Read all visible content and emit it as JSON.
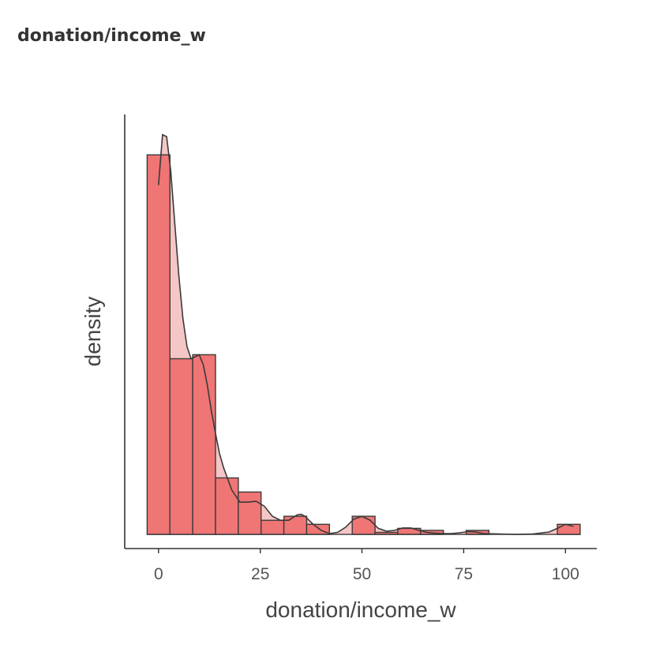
{
  "header": {
    "title": "donation/income_w"
  },
  "chart_data": {
    "type": "bar",
    "subtype": "histogram-with-density",
    "xlabel": "donation/income_w",
    "ylabel": "density",
    "xlim": [
      -8.3,
      107.7
    ],
    "ylim": [
      -0.0035,
      0.104
    ],
    "x_ticks": [
      0,
      25,
      50,
      75,
      100
    ],
    "x_tick_labels": [
      "0",
      "25",
      "50",
      "75",
      "100"
    ],
    "y_ticks_shown": false,
    "grid": false,
    "legend": "none",
    "bin_width": 5.6,
    "bins": [
      {
        "x0": -2.8,
        "x1": 2.8,
        "density": 0.094
      },
      {
        "x0": 2.8,
        "x1": 8.4,
        "density": 0.0435
      },
      {
        "x0": 8.4,
        "x1": 14.0,
        "density": 0.0445
      },
      {
        "x0": 14.0,
        "x1": 19.6,
        "density": 0.014
      },
      {
        "x0": 19.6,
        "x1": 25.2,
        "density": 0.0105
      },
      {
        "x0": 25.2,
        "x1": 30.8,
        "density": 0.0035
      },
      {
        "x0": 30.8,
        "x1": 36.4,
        "density": 0.0045
      },
      {
        "x0": 36.4,
        "x1": 42.0,
        "density": 0.0025
      },
      {
        "x0": 42.0,
        "x1": 47.6,
        "density": 0.0
      },
      {
        "x0": 47.6,
        "x1": 53.2,
        "density": 0.0045
      },
      {
        "x0": 53.2,
        "x1": 58.8,
        "density": 0.0005
      },
      {
        "x0": 58.8,
        "x1": 64.4,
        "density": 0.0015
      },
      {
        "x0": 64.4,
        "x1": 70.0,
        "density": 0.001
      },
      {
        "x0": 70.0,
        "x1": 75.6,
        "density": 0.0
      },
      {
        "x0": 75.6,
        "x1": 81.2,
        "density": 0.001
      },
      {
        "x0": 81.2,
        "x1": 86.8,
        "density": 0.0
      },
      {
        "x0": 86.8,
        "x1": 92.4,
        "density": 0.0
      },
      {
        "x0": 92.4,
        "x1": 98.0,
        "density": 0.0
      },
      {
        "x0": 98.0,
        "x1": 103.6,
        "density": 0.0025
      }
    ],
    "density_curve": {
      "x": [
        0,
        1,
        2,
        3,
        4,
        5,
        6,
        7,
        8,
        9,
        10,
        11,
        12,
        13,
        14,
        15,
        16,
        18,
        20,
        22,
        24,
        26,
        28,
        30,
        32,
        34,
        35,
        36,
        38,
        40,
        42,
        44,
        46,
        48,
        50,
        52,
        54,
        56,
        58,
        60,
        62,
        64,
        66,
        68,
        70,
        72,
        74,
        76,
        78,
        80,
        84,
        88,
        92,
        96,
        98,
        100,
        102
      ],
      "y": [
        0.0865,
        0.099,
        0.0985,
        0.09,
        0.077,
        0.064,
        0.0535,
        0.0465,
        0.0435,
        0.044,
        0.0445,
        0.042,
        0.037,
        0.0305,
        0.025,
        0.02,
        0.0165,
        0.011,
        0.008,
        0.008,
        0.0082,
        0.007,
        0.0045,
        0.0035,
        0.0035,
        0.0048,
        0.005,
        0.0045,
        0.0025,
        0.001,
        0.0002,
        0.0005,
        0.0018,
        0.0038,
        0.0045,
        0.0035,
        0.0015,
        0.0008,
        0.001,
        0.0016,
        0.0016,
        0.001,
        0.0005,
        0.0003,
        0.0002,
        0.0002,
        0.0004,
        0.0007,
        0.0006,
        0.0002,
        0.0001,
        0.0,
        0.0001,
        0.0006,
        0.0015,
        0.0025,
        0.002
      ]
    },
    "colors": {
      "bar_fill": "#f07575",
      "bar_stroke": "#3a3a3a",
      "density_fill": "#f5c6c6",
      "density_line": "#3a3a3a",
      "axis": "#333333"
    }
  }
}
